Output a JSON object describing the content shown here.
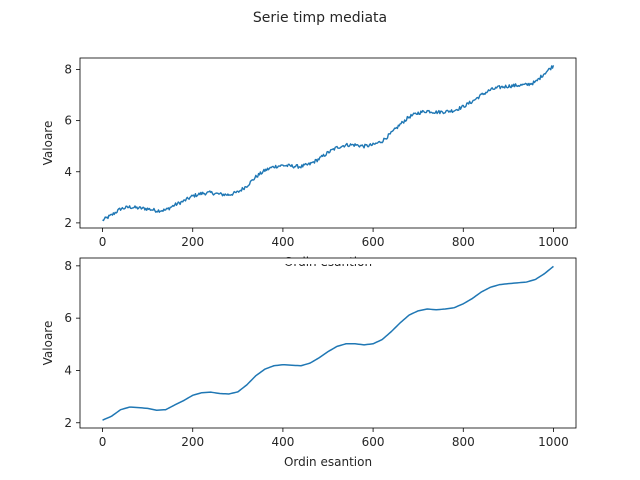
{
  "figure": {
    "suptitle": "Serie timp mediata"
  },
  "chart_data": [
    {
      "type": "line",
      "title": "",
      "xlabel": "Ordin esantion",
      "ylabel": "Valoare",
      "xlim": [
        -50,
        1050
      ],
      "ylim": [
        1.8,
        8.45
      ],
      "xticks": [
        0,
        200,
        400,
        600,
        800,
        1000
      ],
      "yticks": [
        2,
        4,
        6,
        8
      ],
      "grid": false,
      "series": [
        {
          "noisy": true,
          "x": [
            0,
            20,
            40,
            60,
            80,
            100,
            120,
            140,
            160,
            180,
            200,
            220,
            240,
            260,
            280,
            300,
            320,
            340,
            360,
            380,
            400,
            420,
            440,
            460,
            480,
            500,
            520,
            540,
            560,
            580,
            600,
            620,
            640,
            660,
            680,
            700,
            720,
            740,
            760,
            780,
            800,
            820,
            840,
            860,
            880,
            900,
            920,
            940,
            960,
            980,
            1000
          ],
          "y": [
            2.1,
            2.3,
            2.55,
            2.62,
            2.58,
            2.55,
            2.48,
            2.5,
            2.7,
            2.85,
            3.05,
            3.15,
            3.18,
            3.12,
            3.1,
            3.2,
            3.45,
            3.8,
            4.05,
            4.2,
            4.25,
            4.22,
            4.2,
            4.3,
            4.5,
            4.75,
            4.95,
            5.05,
            5.05,
            5.0,
            5.05,
            5.2,
            5.5,
            5.85,
            6.15,
            6.3,
            6.38,
            6.33,
            6.35,
            6.4,
            6.55,
            6.75,
            7.0,
            7.2,
            7.3,
            7.35,
            7.38,
            7.4,
            7.5,
            7.85,
            8.15
          ]
        }
      ]
    },
    {
      "type": "line",
      "title": "",
      "xlabel": "Ordin esantion",
      "ylabel": "Valoare",
      "xlim": [
        -50,
        1050
      ],
      "ylim": [
        1.8,
        8.3
      ],
      "xticks": [
        0,
        200,
        400,
        600,
        800,
        1000
      ],
      "yticks": [
        2,
        4,
        6,
        8
      ],
      "grid": false,
      "series": [
        {
          "noisy": false,
          "x": [
            0,
            20,
            40,
            60,
            80,
            100,
            120,
            140,
            160,
            180,
            200,
            220,
            240,
            260,
            280,
            300,
            320,
            340,
            360,
            380,
            400,
            420,
            440,
            460,
            480,
            500,
            520,
            540,
            560,
            580,
            600,
            620,
            640,
            660,
            680,
            700,
            720,
            740,
            760,
            780,
            800,
            820,
            840,
            860,
            880,
            900,
            920,
            940,
            960,
            980,
            1000
          ],
          "y": [
            2.1,
            2.25,
            2.5,
            2.6,
            2.58,
            2.55,
            2.48,
            2.5,
            2.68,
            2.85,
            3.05,
            3.15,
            3.17,
            3.12,
            3.1,
            3.18,
            3.45,
            3.8,
            4.05,
            4.18,
            4.22,
            4.2,
            4.18,
            4.28,
            4.48,
            4.72,
            4.92,
            5.02,
            5.02,
            4.98,
            5.02,
            5.18,
            5.48,
            5.82,
            6.12,
            6.28,
            6.35,
            6.32,
            6.35,
            6.4,
            6.55,
            6.75,
            7.0,
            7.18,
            7.28,
            7.32,
            7.35,
            7.38,
            7.48,
            7.7,
            7.98
          ]
        }
      ]
    }
  ],
  "colors": {
    "line": "#1f77b4",
    "axes": "#000000",
    "text": "#262626",
    "background": "#ffffff"
  }
}
